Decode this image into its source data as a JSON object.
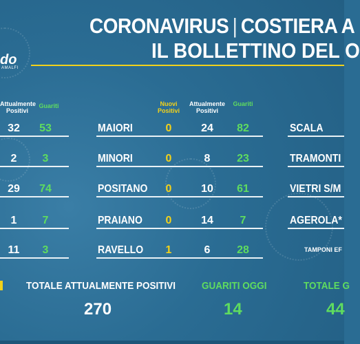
{
  "title": {
    "line1_left": "CORONAVIRUS",
    "separator": "|",
    "line1_right": "COSTIERA A",
    "line2": "IL BOLLETTINO DEL O"
  },
  "logo": {
    "text": "do",
    "sub": "AMALFI"
  },
  "headers": {
    "col1_positivi": "Attualmente Positivi",
    "col1_guariti": "Guariti",
    "col2_nuovi": "Nuovi Positivi",
    "col2_positivi": "Attualmente Positivi",
    "col2_guariti": "Guariti"
  },
  "left_column": [
    {
      "positivi": "32",
      "guariti": "53"
    },
    {
      "positivi": "2",
      "guariti": "3"
    },
    {
      "positivi": "29",
      "guariti": "74"
    },
    {
      "positivi": "1",
      "guariti": "7"
    },
    {
      "positivi": "11",
      "guariti": "3"
    }
  ],
  "middle_column": [
    {
      "town": "MAIORI",
      "nuovi": "0",
      "positivi": "24",
      "guariti": "82"
    },
    {
      "town": "MINORI",
      "nuovi": "0",
      "positivi": "8",
      "guariti": "23"
    },
    {
      "town": "POSITANO",
      "nuovi": "0",
      "positivi": "10",
      "guariti": "61"
    },
    {
      "town": "PRAIANO",
      "nuovi": "0",
      "positivi": "14",
      "guariti": "7"
    },
    {
      "town": "RAVELLO",
      "nuovi": "1",
      "positivi": "6",
      "guariti": "28"
    }
  ],
  "right_column": [
    {
      "town": "SCALA"
    },
    {
      "town": "TRAMONTI"
    },
    {
      "town": "VIETRI S/M"
    },
    {
      "town": "AGEROLA*"
    }
  ],
  "tamponi_label": "TAMPONI EF",
  "totals": {
    "totale_positivi_label": "TOTALE ATTUALMENTE POSITIVI",
    "totale_positivi_value": "270",
    "guariti_oggi_label": "GUARITI OGGI",
    "guariti_oggi_value": "14",
    "totale_guariti_label": "TOTALE G",
    "totale_guariti_value": "44"
  },
  "colors": {
    "background": "#2a6c93",
    "yellow": "#f3d21a",
    "green": "#5fdc5f",
    "white": "#ffffff"
  }
}
